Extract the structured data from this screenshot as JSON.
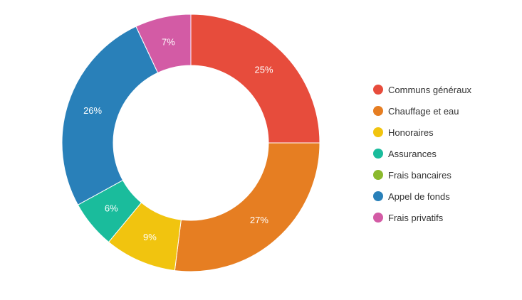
{
  "chart_data": {
    "type": "pie",
    "variant": "donut",
    "title": "",
    "legend_position": "right",
    "categories": [
      "Communs généraux",
      "Chauffage et eau",
      "Honoraires",
      "Assurances",
      "Frais bancaires",
      "Appel de fonds",
      "Frais privatifs"
    ],
    "values": [
      25,
      27,
      9,
      6,
      0,
      26,
      7
    ],
    "data_labels": [
      "25%",
      "27%",
      "9%",
      "6%",
      "",
      "26%",
      "7%"
    ],
    "unit": "%",
    "colors": [
      "#e74c3c",
      "#e67e22",
      "#f1c40f",
      "#1abc9c",
      "#8bb92d",
      "#2980b9",
      "#d35ba5"
    ]
  }
}
